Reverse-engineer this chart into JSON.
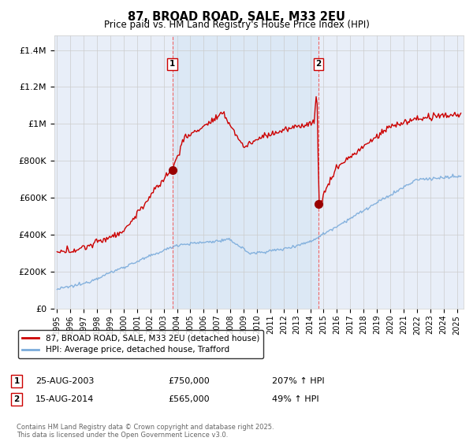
{
  "title": "87, BROAD ROAD, SALE, M33 2EU",
  "subtitle": "Price paid vs. HM Land Registry's House Price Index (HPI)",
  "ylabel_ticks": [
    "£0",
    "£200K",
    "£400K",
    "£600K",
    "£800K",
    "£1M",
    "£1.2M",
    "£1.4M"
  ],
  "ylabel_vals": [
    0,
    200000,
    400000,
    600000,
    800000,
    1000000,
    1200000,
    1400000
  ],
  "ylim": [
    0,
    1480000
  ],
  "xlim_start": 1994.8,
  "xlim_end": 2025.5,
  "sale1_year": 2003.65,
  "sale1_price": 750000,
  "sale1_label": "1",
  "sale1_date": "25-AUG-2003",
  "sale1_hpi_pct": "207%",
  "sale2_year": 2014.62,
  "sale2_price": 565000,
  "sale2_label": "2",
  "sale2_date": "15-AUG-2014",
  "sale2_hpi_pct": "49%",
  "red_color": "#cc0000",
  "blue_color": "#7aabdb",
  "dot_color": "#990000",
  "vline_color": "#ee6666",
  "legend_label_red": "87, BROAD ROAD, SALE, M33 2EU (detached house)",
  "legend_label_blue": "HPI: Average price, detached house, Trafford",
  "footer": "Contains HM Land Registry data © Crown copyright and database right 2025.\nThis data is licensed under the Open Government Licence v3.0.",
  "background_color": "#e8eef8",
  "shade_color": "#dce8f5",
  "plot_bg": "#ffffff",
  "grid_color": "#cccccc"
}
